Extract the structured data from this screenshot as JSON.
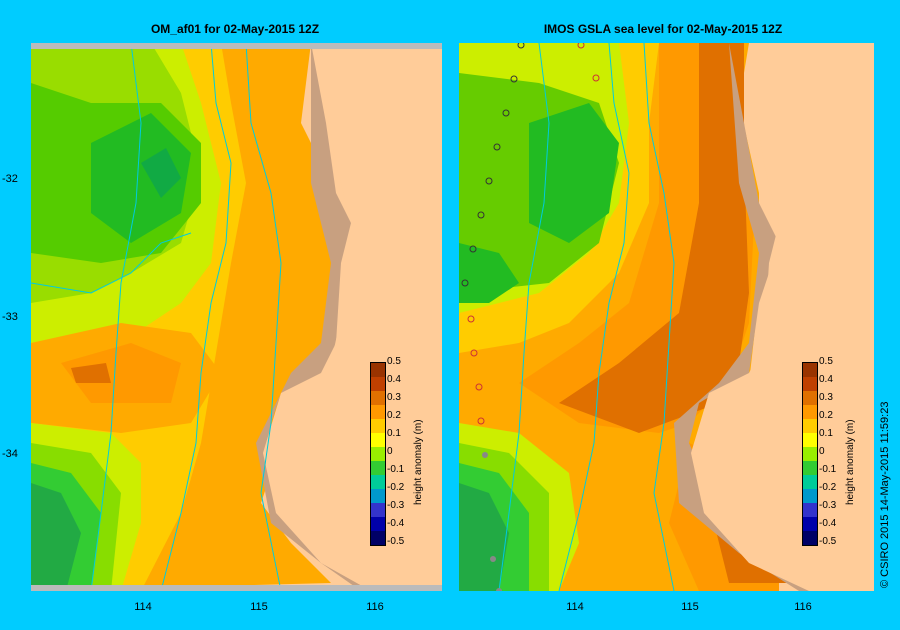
{
  "panels": [
    {
      "title": "OM_af01  for 02-May-2015 12Z"
    },
    {
      "title": "IMOS GSLA sea level  for 02-May-2015 12Z"
    }
  ],
  "y_ticks": [
    "-32",
    "-33",
    "-34"
  ],
  "x_ticks": [
    "114",
    "115",
    "116"
  ],
  "colorbar": {
    "label": "height anomaly (m)",
    "ticks": [
      "0.5",
      "0.4",
      "0.3",
      "0.2",
      "0.1",
      "0",
      "-0.1",
      "-0.2",
      "-0.3",
      "-0.4",
      "-0.5"
    ],
    "colors": [
      "#000066",
      "#0000aa",
      "#3333cc",
      "#0099cc",
      "#00cc99",
      "#33cc33",
      "#99ee00",
      "#ffff00",
      "#ffcc00",
      "#ff9900",
      "#e07000",
      "#c04000",
      "#993300"
    ]
  },
  "copyright": "© CSIRO 2015   14-May-2015 11:59:23",
  "colors": {
    "background": "#00ccff",
    "land": "#ffcc99",
    "shelf": "#c8a080",
    "contour": "#00ccdd"
  }
}
